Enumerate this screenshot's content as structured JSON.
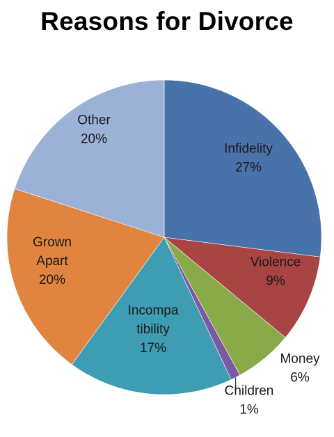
{
  "chart_data": {
    "type": "pie",
    "title": "Reasons for Divorce",
    "slices": [
      {
        "name": "Infidelity",
        "value": 27,
        "label_lines": [
          "Infidelity",
          "27%"
        ],
        "color": "#4a72aa"
      },
      {
        "name": "Violence",
        "value": 9,
        "label_lines": [
          "Violence",
          "9%"
        ],
        "color": "#a94444"
      },
      {
        "name": "Money",
        "value": 6,
        "label_lines": [
          "Money",
          "6%"
        ],
        "color": "#8aaa4a"
      },
      {
        "name": "Children",
        "value": 1,
        "label_lines": [
          "Children",
          "1%"
        ],
        "color": "#7a5aa3"
      },
      {
        "name": "Incompatibility",
        "value": 17,
        "label_lines": [
          "Incompa",
          "tibility",
          "17%"
        ],
        "color": "#3e9cb3"
      },
      {
        "name": "Grown Apart",
        "value": 20,
        "label_lines": [
          "Grown",
          "Apart",
          "20%"
        ],
        "color": "#e0843f"
      },
      {
        "name": "Other",
        "value": 20,
        "label_lines": [
          "Other",
          "20%"
        ],
        "color": "#9bb2d6"
      }
    ]
  }
}
